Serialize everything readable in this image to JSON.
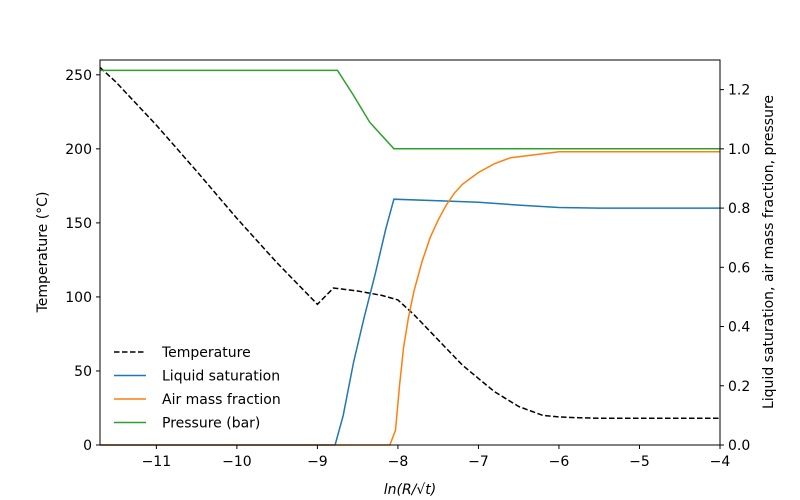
{
  "chart_data": {
    "type": "line",
    "xlabel": "ln(R/√t)",
    "xlim": [
      -11.7,
      -4
    ],
    "x_ticks": [
      -11,
      -10,
      -9,
      -8,
      -7,
      -6,
      -5,
      -4
    ],
    "x_tick_labels": [
      "−11",
      "−10",
      "−9",
      "−8",
      "−7",
      "−6",
      "−5",
      "−4"
    ],
    "left_axis": {
      "label": "Temperature (°C)",
      "ylim": [
        0,
        260
      ],
      "ticks": [
        0,
        50,
        100,
        150,
        200,
        250
      ],
      "tick_labels": [
        "0",
        "50",
        "100",
        "150",
        "200",
        "250"
      ]
    },
    "right_axis": {
      "label": "Liquid saturation, air mass fraction, pressure",
      "ylim": [
        0,
        1.3
      ],
      "ticks": [
        0.0,
        0.2,
        0.4,
        0.6,
        0.8,
        1.0,
        1.2
      ],
      "tick_labels": [
        "0.0",
        "0.2",
        "0.4",
        "0.6",
        "0.8",
        "1.0",
        "1.2"
      ]
    },
    "legend_position": "lower-left",
    "series": [
      {
        "name": "Temperature",
        "axis": "left",
        "color": "#000000",
        "dashed": true,
        "x": [
          -11.7,
          -11.5,
          -11.0,
          -10.5,
          -10.0,
          -9.5,
          -9.0,
          -8.8,
          -8.5,
          -8.2,
          -8.0,
          -7.8,
          -7.5,
          -7.2,
          -7.0,
          -6.8,
          -6.5,
          -6.2,
          -6.0,
          -5.8,
          -5.5,
          -5.0,
          -4.5,
          -4.0
        ],
        "y": [
          255,
          245,
          216,
          185,
          153,
          123,
          95,
          106,
          104,
          101,
          98,
          88,
          71,
          54,
          45,
          36,
          26,
          20,
          19,
          18.5,
          18,
          18,
          18,
          18
        ]
      },
      {
        "name": "Liquid saturation",
        "axis": "right",
        "color": "#1f77b4",
        "dashed": false,
        "x": [
          -11.7,
          -9.0,
          -8.78,
          -8.68,
          -8.55,
          -8.42,
          -8.28,
          -8.15,
          -8.05,
          -7.5,
          -7.0,
          -6.5,
          -6.0,
          -5.5,
          -5.0,
          -4.0
        ],
        "y": [
          0.0,
          0.0,
          0.0,
          0.1,
          0.28,
          0.43,
          0.58,
          0.73,
          0.83,
          0.825,
          0.82,
          0.81,
          0.802,
          0.8,
          0.8,
          0.8
        ]
      },
      {
        "name": "Air mass fraction",
        "axis": "right",
        "color": "#ff7f0e",
        "dashed": false,
        "x": [
          -11.7,
          -8.1,
          -8.03,
          -7.98,
          -7.93,
          -7.87,
          -7.8,
          -7.7,
          -7.6,
          -7.5,
          -7.4,
          -7.3,
          -7.2,
          -7.0,
          -6.8,
          -6.6,
          -6.3,
          -6.0,
          -5.5,
          -5.0,
          -4.0
        ],
        "y": [
          0.0,
          0.0,
          0.05,
          0.2,
          0.33,
          0.43,
          0.52,
          0.62,
          0.7,
          0.76,
          0.81,
          0.85,
          0.88,
          0.92,
          0.95,
          0.97,
          0.98,
          0.99,
          0.99,
          0.99,
          0.99
        ]
      },
      {
        "name": "Pressure (bar)",
        "axis": "right",
        "color": "#2ca02c",
        "dashed": false,
        "x": [
          -11.7,
          -8.75,
          -8.55,
          -8.35,
          -8.05,
          -8.0,
          -7.0,
          -6.0,
          -5.0,
          -4.0
        ],
        "y": [
          1.265,
          1.265,
          1.18,
          1.09,
          1.0,
          1.0,
          1.0,
          1.0,
          1.0,
          1.0
        ]
      }
    ]
  }
}
